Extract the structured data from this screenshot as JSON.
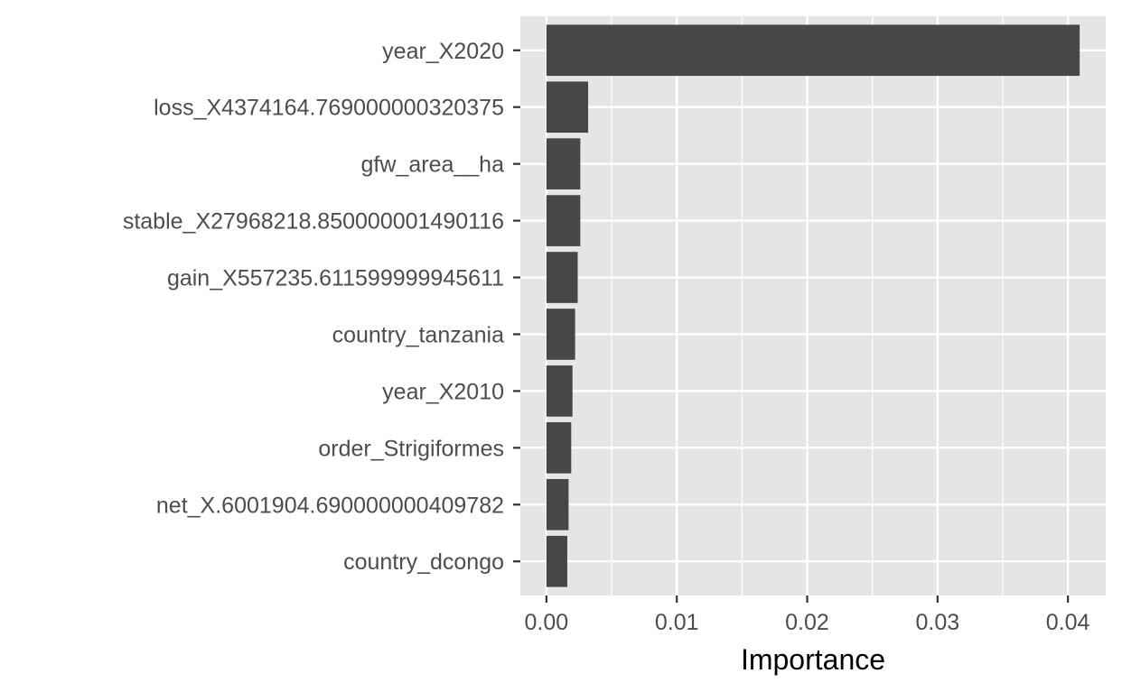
{
  "chart_data": {
    "type": "bar",
    "orientation": "horizontal",
    "title": "",
    "xlabel": "Importance",
    "ylabel": "",
    "categories": [
      "year_X2020",
      "loss_X4374164.769000000320375",
      "gfw_area__ha",
      "stable_X27968218.850000001490116",
      "gain_X557235.611599999945611",
      "country_tanzania",
      "year_X2010",
      "order_Strigiformes",
      "net_X.6001904.690000000409782",
      "country_dcongo"
    ],
    "values": [
      0.0409,
      0.0032,
      0.0026,
      0.0026,
      0.0024,
      0.0022,
      0.002,
      0.0019,
      0.0017,
      0.0016
    ],
    "xlim": [
      -0.002,
      0.0429
    ],
    "x_ticks": [
      0.0,
      0.01,
      0.02,
      0.03,
      0.04
    ],
    "x_tick_labels": [
      "0.00",
      "0.01",
      "0.02",
      "0.03",
      "0.04"
    ],
    "grid": true,
    "legend": "none",
    "colors": {
      "bar": "#474747",
      "panel_background": "#e5e5e5",
      "grid": "#ffffff",
      "tick": "#333333",
      "tick_label": "#4d4d4d"
    }
  }
}
